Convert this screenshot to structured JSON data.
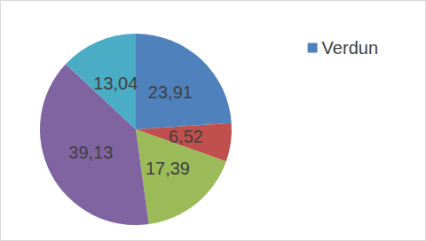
{
  "chart_data": {
    "type": "pie",
    "categories": [
      "Verdun",
      null,
      null,
      null,
      null
    ],
    "values": [
      23.91,
      6.52,
      17.39,
      39.13,
      13.04
    ],
    "value_labels": [
      "23,91",
      "6,52",
      "17,39",
      "39,13",
      "13,04"
    ],
    "colors": [
      "#4f81bd",
      "#c0504d",
      "#9bbb59",
      "#8064a2",
      "#4bacc6"
    ],
    "data_labels": true,
    "legend": "right"
  }
}
